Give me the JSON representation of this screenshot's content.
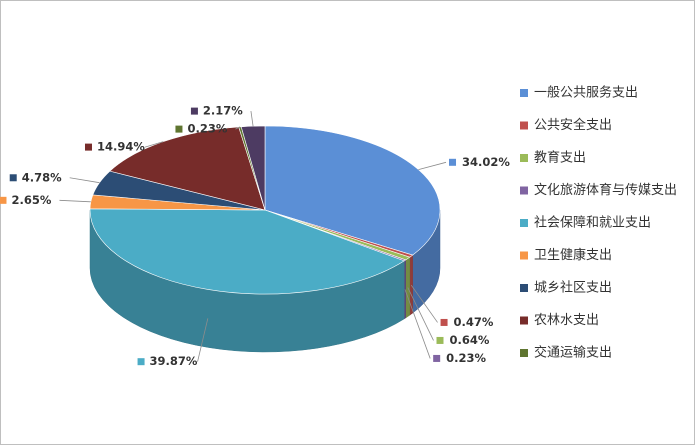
{
  "chart_data": {
    "type": "pie3d",
    "categories": [
      "一般公共服务支出",
      "公共安全支出",
      "教育支出",
      "文化旅游体育与传媒支出",
      "社会保障和就业支出",
      "卫生健康支出",
      "城乡社区支出",
      "农林水支出",
      "交通运输支出",
      null
    ],
    "values": [
      34.02,
      0.47,
      0.64,
      0.23,
      39.87,
      2.65,
      4.78,
      14.94,
      0.23,
      2.17
    ],
    "value_labels": [
      "34.02%",
      "0.47%",
      "0.64%",
      "0.23%",
      "39.87%",
      "2.65%",
      "4.78%",
      "14.94%",
      "0.23%",
      "2.17%"
    ],
    "colors": [
      "#5b8fd6",
      "#c0504d",
      "#9bbb59",
      "#8064a2",
      "#4bacc6",
      "#f79646",
      "#2c4d75",
      "#772c2a",
      "#5f7530",
      "#4d3b62"
    ],
    "legend": "right"
  }
}
